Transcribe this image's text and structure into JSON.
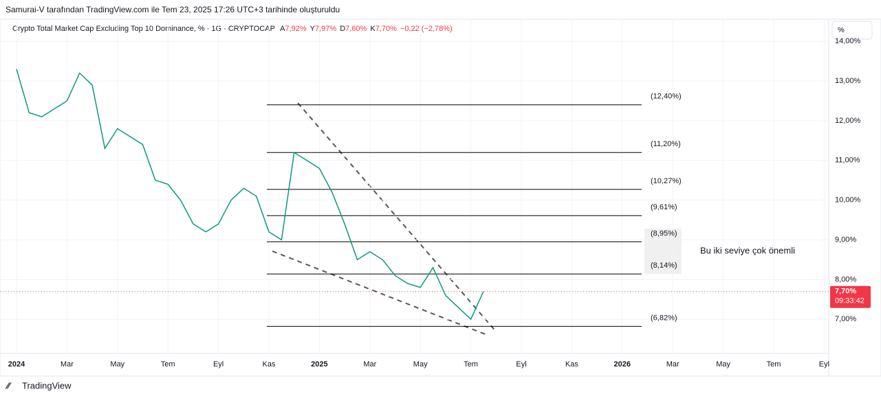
{
  "header": "Samurai-V tarafından TradingView.com ile Tem 23, 2025 17:26 UTC+3 tarihinde oluşturuldu",
  "legend": {
    "symbol": "Crypto Total Market Cap Excluding Top 10 Dominance, % · 1G · CRYPTOCAP",
    "ohlc": [
      {
        "key": "A",
        "value": "7,92%"
      },
      {
        "key": "Y",
        "value": "7,97%"
      },
      {
        "key": "D",
        "value": "7,60%"
      },
      {
        "key": "K",
        "value": "7,70%"
      }
    ],
    "change": "−0,22 (−2,78%)"
  },
  "scale_button": "%",
  "footer": "TradingView",
  "chart_data": {
    "type": "line",
    "color": "#089981",
    "categories": [
      "2024",
      null,
      null,
      null,
      "Mar",
      null,
      null,
      null,
      "May",
      null,
      null,
      null,
      "Tem",
      null,
      null,
      null,
      "Eyl",
      null,
      null,
      null,
      "Kas",
      null,
      null,
      null,
      "2025",
      null,
      null,
      null,
      "Mar",
      null,
      null,
      null,
      "May",
      null,
      null,
      null,
      "Tem",
      null,
      null,
      null,
      "Eyl",
      null,
      null,
      null,
      "Kas",
      null,
      null,
      null,
      "2026",
      null,
      null,
      null,
      "Mar",
      null,
      null,
      null,
      "May",
      null,
      null,
      null,
      "Tem",
      null,
      null,
      null,
      "Eyl",
      null
    ],
    "values": [
      13.3,
      12.2,
      12.1,
      12.3,
      12.5,
      13.2,
      12.9,
      11.3,
      11.8,
      11.6,
      11.4,
      10.5,
      10.4,
      10.0,
      9.4,
      9.2,
      9.4,
      10.0,
      10.3,
      10.1,
      9.2,
      9.0,
      11.2,
      11.0,
      10.8,
      10.2,
      9.4,
      8.5,
      8.7,
      8.5,
      8.1,
      7.9,
      7.8,
      8.3,
      7.6,
      7.3,
      7.0,
      7.7,
      null,
      null,
      null,
      null,
      null,
      null,
      null,
      null,
      null,
      null,
      null,
      null,
      null,
      null,
      null,
      null,
      null,
      null,
      null,
      null,
      null,
      null,
      null,
      null,
      null,
      null,
      null,
      null
    ],
    "ylim": [
      6.14,
      14.09
    ],
    "yticks": [
      {
        "value": 7,
        "label": "7,00%"
      },
      {
        "value": 8,
        "label": "8,00%"
      },
      {
        "value": 9,
        "label": "9,00%"
      },
      {
        "value": 10,
        "label": "10,00%"
      },
      {
        "value": 11,
        "label": "11,00%"
      },
      {
        "value": 12,
        "label": "12,00%"
      },
      {
        "value": 13,
        "label": "13,00%"
      },
      {
        "value": 14,
        "label": "14,00%"
      }
    ],
    "levels": [
      {
        "value": 12.4,
        "label": "(12,40%)"
      },
      {
        "value": 11.2,
        "label": "(11,20%)"
      },
      {
        "value": 10.27,
        "label": "(10,27%)"
      },
      {
        "value": 9.61,
        "label": "(9,61%)"
      },
      {
        "value": 8.95,
        "label": "(8,95%)"
      },
      {
        "value": 8.14,
        "label": "(8,14%)"
      },
      {
        "value": 6.82,
        "label": "(6,82%)"
      }
    ],
    "last_value": {
      "value": 7.7,
      "label": "7,70%"
    },
    "countdown": "09:33:42",
    "annotation": "Bu iki seviye çok önemli"
  }
}
